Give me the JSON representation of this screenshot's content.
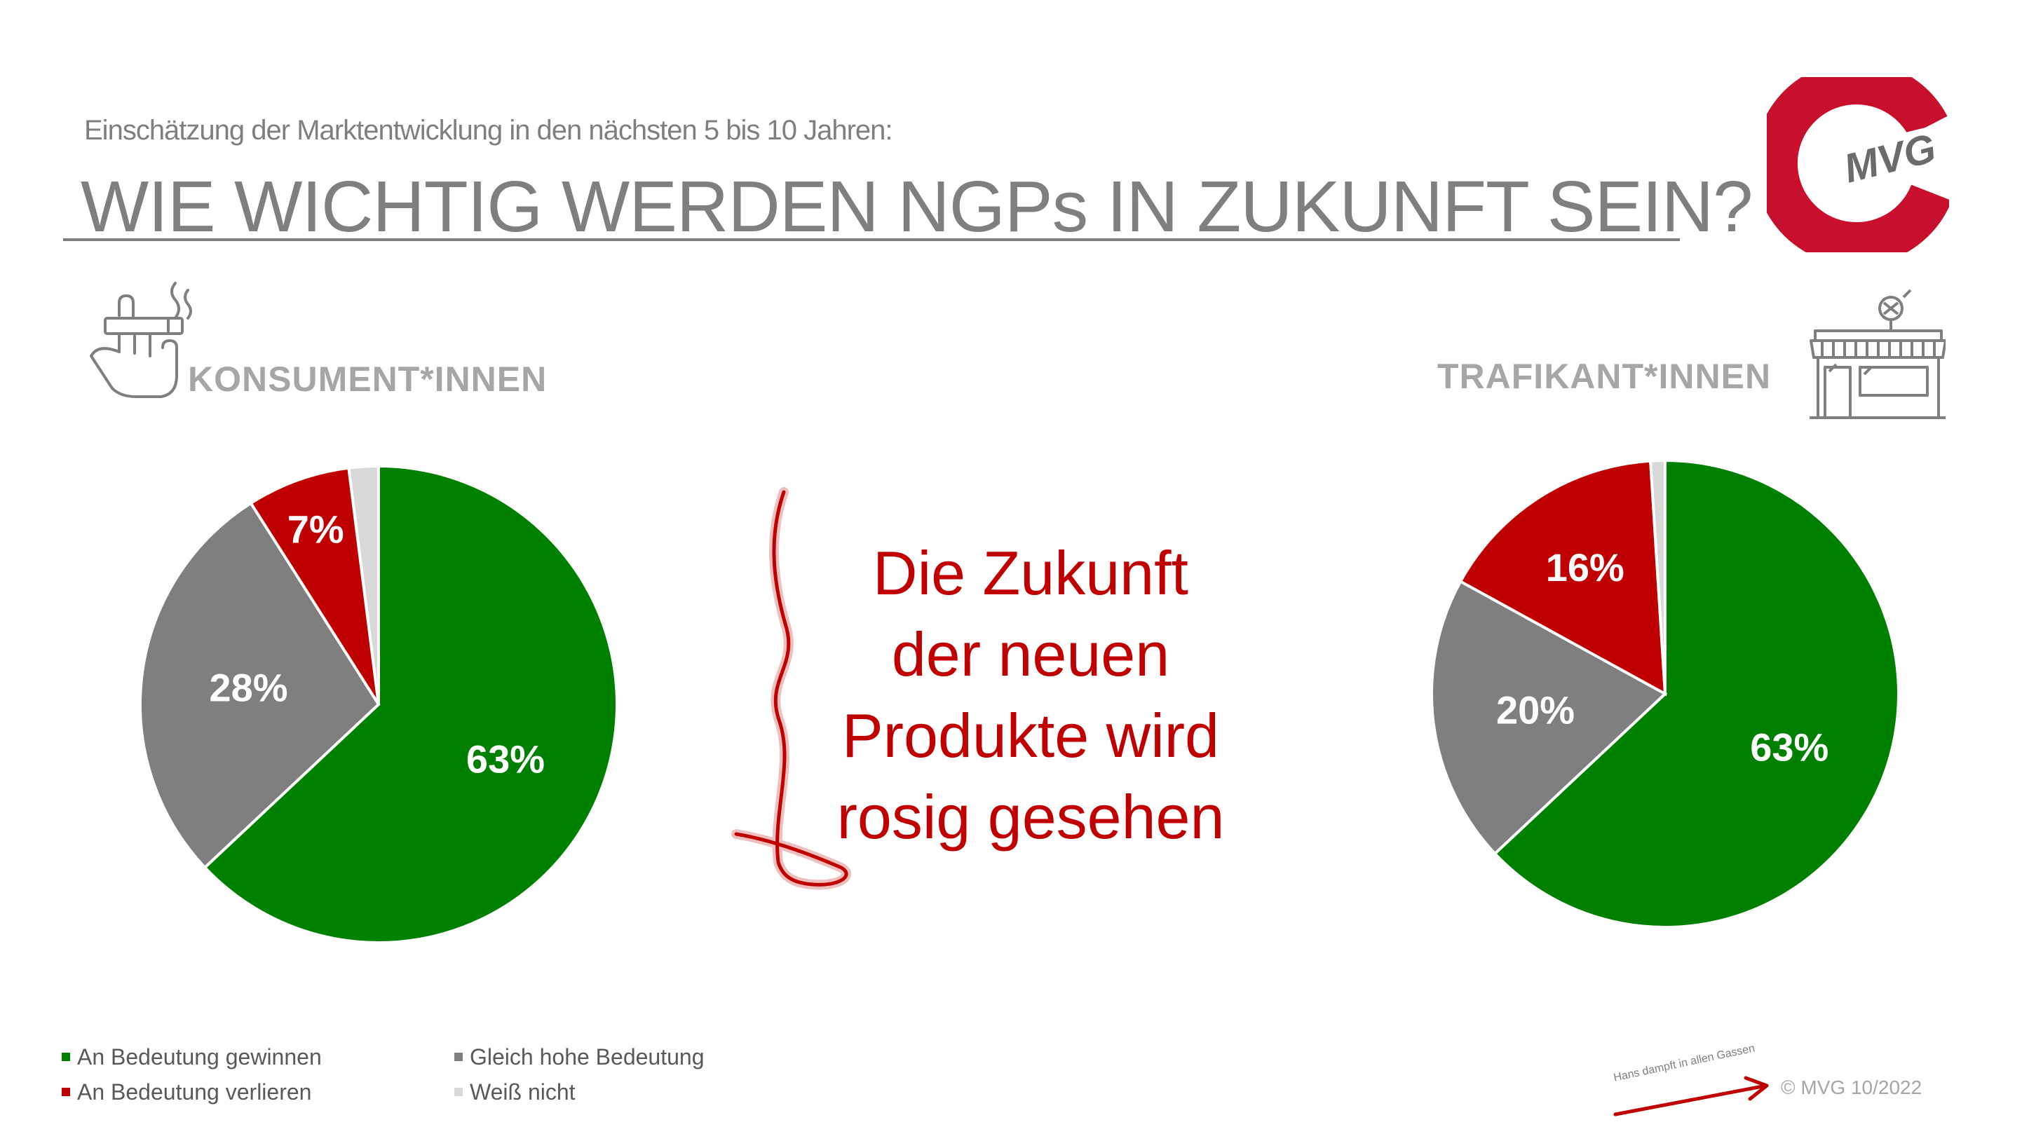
{
  "header": {
    "subtitle": "Einschätzung der Marktentwicklung in den nächsten 5 bis 10 Jahren:",
    "title": "WIE WICHTIG WERDEN NGPs IN ZUKUNFT SEIN?"
  },
  "logo": {
    "text": "MVG",
    "color": "#c8102e"
  },
  "callout": {
    "lines": [
      "Die Zukunft",
      "der neuen",
      "Produkte wird",
      "rosig gesehen"
    ],
    "color": "#c00000"
  },
  "legend": [
    {
      "label": "An Bedeutung gewinnen",
      "color": "#008000"
    },
    {
      "label": "Gleich hohe Bedeutung",
      "color": "#7f7f7f"
    },
    {
      "label": "An Bedeutung verlieren",
      "color": "#c00000"
    },
    {
      "label": "Weiß nicht",
      "color": "#d9d9d9"
    }
  ],
  "footer": {
    "copyright": "© MVG 10/2022",
    "signature": "Hans dampft in allen Gassen"
  },
  "icons": {
    "consumer": "hand-cigarette-icon",
    "retailer": "kiosk-shop-icon"
  },
  "chart_data": [
    {
      "type": "pie",
      "title": "KONSUMENT*INNEN",
      "categories": [
        "An Bedeutung gewinnen",
        "Gleich hohe Bedeutung",
        "An Bedeutung verlieren",
        "Weiß nicht"
      ],
      "values": [
        63,
        28,
        7,
        2
      ],
      "labels": [
        "63%",
        "28%",
        "7%",
        ""
      ],
      "colors": [
        "#008000",
        "#7f7f7f",
        "#c00000",
        "#d9d9d9"
      ]
    },
    {
      "type": "pie",
      "title": "TRAFIKANT*INNEN",
      "categories": [
        "An Bedeutung gewinnen",
        "Gleich hohe Bedeutung",
        "An Bedeutung verlieren",
        "Weiß nicht"
      ],
      "values": [
        63,
        20,
        16,
        1
      ],
      "labels": [
        "63%",
        "20%",
        "16%",
        ""
      ],
      "colors": [
        "#008000",
        "#7f7f7f",
        "#c00000",
        "#d9d9d9"
      ]
    }
  ]
}
